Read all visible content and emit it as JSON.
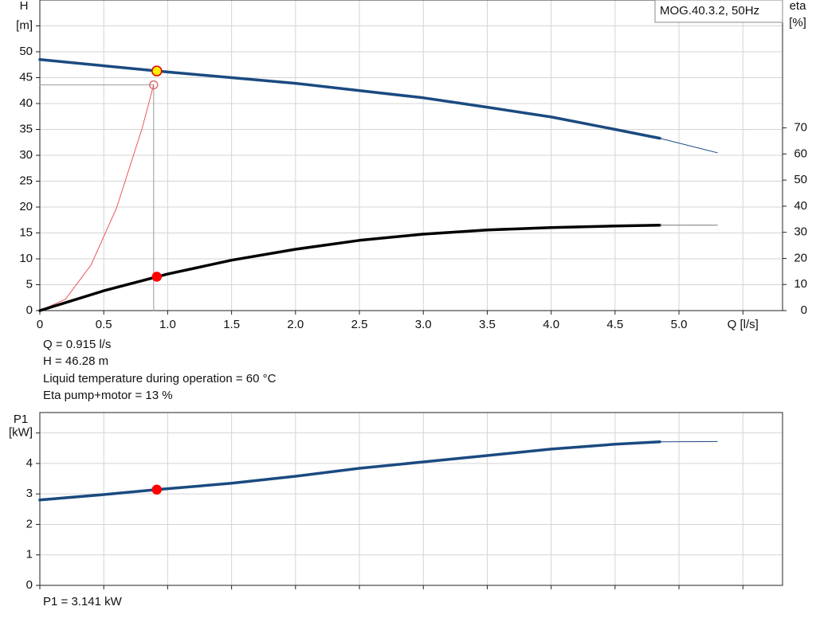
{
  "chart_data": [
    {
      "type": "line",
      "axis_labels": {
        "y": "H",
        "y2_top": "eta",
        "y2_unit": "[%]"
      },
      "legend_text": "MOG.40.3.2, 50Hz",
      "xlim": [
        0,
        5.81
      ],
      "xticks": [
        0,
        0.5,
        {
          "value": 1,
          "label": "1.0"
        },
        1.5,
        {
          "value": 2,
          "label": "2.0"
        },
        2.5,
        {
          "value": 3,
          "label": "3.0"
        },
        3.5,
        {
          "value": 4,
          "label": "4.0"
        },
        4.5,
        {
          "value": 5,
          "label": "5.0"
        },
        {
          "value": 5.5,
          "label": "Q [l/s]"
        }
      ],
      "ylim": [
        0,
        60
      ],
      "yticks": [
        0,
        5,
        10,
        15,
        20,
        25,
        30,
        35,
        40,
        45,
        50,
        {
          "value": 55,
          "label": "[m]"
        }
      ],
      "y2lim": [
        0,
        119
      ],
      "y2ticks": [
        0,
        10,
        20,
        30,
        40,
        50,
        60,
        70
      ],
      "grid": true,
      "series": [
        {
          "color": "#9a9a9a",
          "width": 1,
          "x": [
            0,
            0.89,
            0.89
          ],
          "values": [
            43.6,
            43.6,
            0
          ]
        },
        {
          "color": "#e83030",
          "width": 0.8,
          "x": [
            0,
            0.2,
            0.4,
            0.6,
            0.8,
            0.89
          ],
          "values": [
            0,
            2.2,
            8.8,
            19.8,
            35.2,
            43.6
          ]
        },
        {
          "color": "#1a4a80",
          "width": 3.5,
          "x": [
            0,
            0.5,
            1,
            1.5,
            2,
            2.5,
            3,
            3.5,
            4,
            4.5,
            4.85
          ],
          "values": [
            48.5,
            47.3,
            46.1,
            45,
            43.9,
            42.5,
            41.1,
            39.3,
            37.4,
            35,
            33.3
          ]
        },
        {
          "color": "#1a4a80",
          "width": 1,
          "x": [
            4.85,
            5.3
          ],
          "values": [
            33.3,
            30.5
          ]
        },
        {
          "color": "#000000",
          "width": 3.5,
          "axis": "y2",
          "x": [
            0,
            0.5,
            1,
            1.5,
            2,
            2.5,
            3,
            3.5,
            4,
            4.5,
            4.85
          ],
          "values": [
            0,
            7.6,
            14,
            19.3,
            23.5,
            26.9,
            29.3,
            30.9,
            31.8,
            32.4,
            32.7
          ]
        },
        {
          "color": "#777777",
          "width": 1,
          "axis": "y2",
          "x": [
            4.85,
            5.3
          ],
          "values": [
            32.7,
            32.7
          ]
        }
      ],
      "points": [
        {
          "x": 0.89,
          "y": 43.6,
          "color": "none",
          "edge": "#e07070",
          "r": 5
        },
        {
          "x": 0.915,
          "y": 46.28,
          "color": "#ffee00",
          "edge": "#e00000",
          "r": 6
        },
        {
          "x": 0.915,
          "y": 13,
          "axis": "y2",
          "color": "#ff0000",
          "edge": "#ff0000",
          "r": 5.5
        }
      ],
      "annotations": [
        "Q = 0.915 l/s",
        "H = 46.28 m",
        "Liquid temperature during operation = 60 °C",
        "Eta pump+motor = 13 %"
      ]
    },
    {
      "type": "line",
      "axis_labels": {
        "y": "P1"
      },
      "xlim": [
        0,
        5.81
      ],
      "xticks": [
        0,
        0.5,
        1,
        1.5,
        2,
        2.5,
        3,
        3.5,
        4,
        4.5,
        5,
        5.5
      ],
      "show_xtick_labels": false,
      "ylim": [
        0,
        5.67
      ],
      "yticks": [
        0,
        1,
        2,
        3,
        4,
        {
          "value": 5,
          "label": "[kW]"
        }
      ],
      "grid": true,
      "series": [
        {
          "color": "#1a4a80",
          "width": 3.5,
          "x": [
            0,
            0.5,
            0.915,
            1.5,
            2,
            2.5,
            3,
            3.5,
            4,
            4.5,
            4.85
          ],
          "values": [
            2.8,
            2.98,
            3.141,
            3.35,
            3.58,
            3.84,
            4.05,
            4.26,
            4.47,
            4.63,
            4.71
          ]
        },
        {
          "color": "#1a4a80",
          "width": 1,
          "x": [
            4.85,
            5.3
          ],
          "values": [
            4.71,
            4.72
          ]
        }
      ],
      "points": [
        {
          "x": 0.915,
          "y": 3.141,
          "color": "#ff0000",
          "edge": "#ff0000",
          "r": 5.5
        }
      ],
      "annotations": [
        "P1 = 3.141 kW"
      ]
    }
  ]
}
